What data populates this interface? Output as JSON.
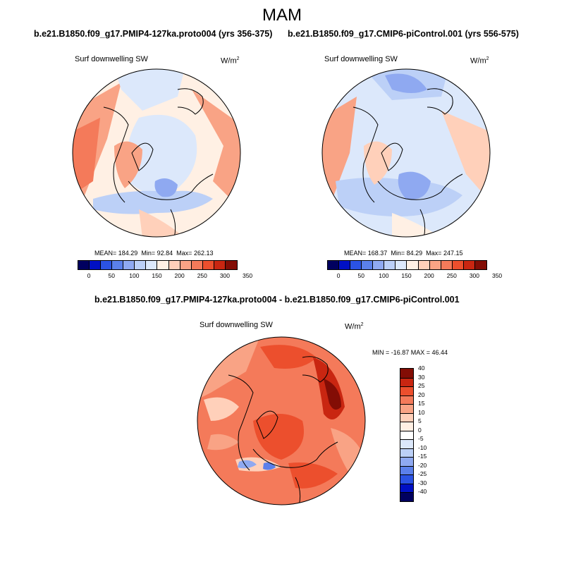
{
  "figure_title": "MAM",
  "colors": {
    "diverging": [
      "#00005f",
      "#0010c4",
      "#2b53e4",
      "#5b80eb",
      "#8fa9f1",
      "#bcd0f7",
      "#dce8fb",
      "#fff0e4",
      "#ffd0ba",
      "#f9a385",
      "#f47a5a",
      "#ec4f2d",
      "#c92611",
      "#830d05"
    ],
    "diff": [
      "#00005f",
      "#0010c4",
      "#2b53e4",
      "#5b80eb",
      "#8fa9f1",
      "#bcd0f7",
      "#dce8fb",
      "#ffffff",
      "#fff0e4",
      "#ffd0ba",
      "#f9a385",
      "#f47a5a",
      "#ec4f2d",
      "#c92611",
      "#830d05"
    ]
  },
  "chart_data": [
    {
      "type": "heatmap",
      "projection": "north polar stereographic",
      "title": "b.e21.B1850.f09_g17.PMIP4-127ka.proto004 (yrs 356-375)",
      "variable": "Surf downwelling SW",
      "units_base": "W/m",
      "units_exp": "2",
      "stats": {
        "mean_label": "MEAN=",
        "mean": "184.29",
        "min_label": "Min=",
        "min": "92.84",
        "max_label": "Max=",
        "max": "262.13"
      },
      "colorbar_ticks": [
        "0",
        "50",
        "100",
        "150",
        "200",
        "250",
        "300",
        "350"
      ],
      "colorbar_levels": 14
    },
    {
      "type": "heatmap",
      "projection": "north polar stereographic",
      "title": "b.e21.B1850.f09_g17.CMIP6-piControl.001 (yrs 556-575)",
      "variable": "Surf downwelling SW",
      "units_base": "W/m",
      "units_exp": "2",
      "stats": {
        "mean_label": "MEAN=",
        "mean": "168.37",
        "min_label": "Min=",
        "min": "84.29",
        "max_label": "Max=",
        "max": "247.15"
      },
      "colorbar_ticks": [
        "0",
        "50",
        "100",
        "150",
        "200",
        "250",
        "300",
        "350"
      ],
      "colorbar_levels": 14
    },
    {
      "type": "heatmap",
      "projection": "north polar stereographic",
      "title": "b.e21.B1850.f09_g17.PMIP4-127ka.proto004 - b.e21.B1850.f09_g17.CMIP6-piControl.001",
      "variable": "Surf downwelling SW",
      "units_base": "W/m",
      "units_exp": "2",
      "stats_text": "MIN = -16.87 MAX =  46.44",
      "colorbar_ticks": [
        "-40",
        "-30",
        "-25",
        "-20",
        "-15",
        "-10",
        "-5",
        "0",
        "5",
        "10",
        "15",
        "20",
        "25",
        "30",
        "40"
      ],
      "colorbar_levels": 15
    }
  ]
}
